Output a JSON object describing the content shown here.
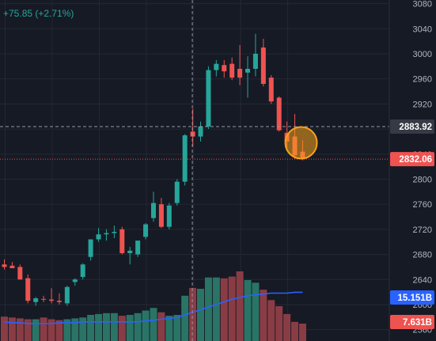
{
  "header": {
    "change_text": "+75.85 (+2.71%)"
  },
  "colors": {
    "background": "#161a25",
    "up": "#26a69a",
    "down": "#ef5350",
    "volume_up": "#2a7466",
    "volume_down": "#8a3c45",
    "grid": "#242834",
    "axis_text": "#b2b5be",
    "ma_line": "#2962ff",
    "highlight": "#f7a21b"
  },
  "chart_data": {
    "type": "candlestick",
    "y_axis_ticks": [
      3080,
      3040,
      3000,
      2960,
      2920,
      2880,
      2840,
      2800,
      2760,
      2720,
      2680,
      2640,
      2600,
      2560
    ],
    "ylim": [
      2552,
      3082
    ],
    "grid": true,
    "crosshair": {
      "price": 2883.92,
      "label": "2883.92"
    },
    "last_price": {
      "price": 2832.06,
      "label": "2832.06"
    },
    "volume_labels": [
      {
        "label": "15.151B",
        "value_b": 15.151,
        "color": "#2962ff"
      },
      {
        "label": "7.631B",
        "value_b": 7.631,
        "color": "#ef5350"
      }
    ],
    "candles": [
      {
        "o": 2664,
        "h": 2672,
        "l": 2656,
        "c": 2660
      },
      {
        "o": 2662,
        "h": 2668,
        "l": 2658,
        "c": 2658
      },
      {
        "o": 2660,
        "h": 2664,
        "l": 2640,
        "c": 2640
      },
      {
        "o": 2642,
        "h": 2648,
        "l": 2602,
        "c": 2606
      },
      {
        "o": 2604,
        "h": 2612,
        "l": 2598,
        "c": 2610
      },
      {
        "o": 2609,
        "h": 2614,
        "l": 2604,
        "c": 2608
      },
      {
        "o": 2608,
        "h": 2626,
        "l": 2602,
        "c": 2606
      },
      {
        "o": 2606,
        "h": 2618,
        "l": 2600,
        "c": 2604
      },
      {
        "o": 2602,
        "h": 2630,
        "l": 2598,
        "c": 2628
      },
      {
        "o": 2636,
        "h": 2642,
        "l": 2630,
        "c": 2640
      },
      {
        "o": 2644,
        "h": 2666,
        "l": 2640,
        "c": 2664
      },
      {
        "o": 2676,
        "h": 2704,
        "l": 2670,
        "c": 2704
      },
      {
        "o": 2704,
        "h": 2722,
        "l": 2700,
        "c": 2712
      },
      {
        "o": 2712,
        "h": 2720,
        "l": 2702,
        "c": 2714
      },
      {
        "o": 2714,
        "h": 2726,
        "l": 2706,
        "c": 2716
      },
      {
        "o": 2720,
        "h": 2724,
        "l": 2680,
        "c": 2682
      },
      {
        "o": 2682,
        "h": 2692,
        "l": 2664,
        "c": 2686
      },
      {
        "o": 2680,
        "h": 2702,
        "l": 2676,
        "c": 2702
      },
      {
        "o": 2708,
        "h": 2730,
        "l": 2704,
        "c": 2728
      },
      {
        "o": 2738,
        "h": 2780,
        "l": 2732,
        "c": 2762
      },
      {
        "o": 2760,
        "h": 2770,
        "l": 2722,
        "c": 2724
      },
      {
        "o": 2724,
        "h": 2762,
        "l": 2720,
        "c": 2758
      },
      {
        "o": 2762,
        "h": 2800,
        "l": 2758,
        "c": 2796
      },
      {
        "o": 2796,
        "h": 2872,
        "l": 2790,
        "c": 2870
      },
      {
        "o": 2876,
        "h": 2912,
        "l": 2852,
        "c": 2868
      },
      {
        "o": 2868,
        "h": 2892,
        "l": 2860,
        "c": 2884
      },
      {
        "o": 2884,
        "h": 2980,
        "l": 2880,
        "c": 2974
      },
      {
        "o": 2974,
        "h": 2990,
        "l": 2964,
        "c": 2984
      },
      {
        "o": 2982,
        "h": 2990,
        "l": 2962,
        "c": 2972
      },
      {
        "o": 2984,
        "h": 2994,
        "l": 2958,
        "c": 2962
      },
      {
        "o": 2976,
        "h": 3014,
        "l": 2950,
        "c": 2962
      },
      {
        "o": 2970,
        "h": 2996,
        "l": 2930,
        "c": 2976
      },
      {
        "o": 2976,
        "h": 3032,
        "l": 2964,
        "c": 3000
      },
      {
        "o": 3010,
        "h": 3024,
        "l": 2948,
        "c": 2952
      },
      {
        "o": 2962,
        "h": 2966,
        "l": 2920,
        "c": 2924
      },
      {
        "o": 2930,
        "h": 2932,
        "l": 2876,
        "c": 2878
      },
      {
        "o": 2874,
        "h": 2892,
        "l": 2846,
        "c": 2860
      },
      {
        "o": 2868,
        "h": 2904,
        "l": 2832,
        "c": 2838
      },
      {
        "o": 2844,
        "h": 2862,
        "l": 2830,
        "c": 2832
      }
    ],
    "volumes": [
      28,
      27,
      26,
      25,
      25,
      27,
      25,
      24,
      25,
      26,
      27,
      30,
      31,
      32,
      32,
      29,
      30,
      32,
      35,
      38,
      33,
      29,
      30,
      52,
      61,
      60,
      73,
      73,
      72,
      74,
      80,
      70,
      67,
      59,
      47,
      40,
      31,
      22,
      20
    ],
    "ma_values": [
      22,
      21,
      21,
      20,
      20,
      20,
      20,
      21,
      21,
      21,
      22,
      22,
      22,
      22,
      22,
      22,
      22,
      22,
      23,
      24,
      25,
      26,
      27,
      30,
      33,
      36,
      39,
      42,
      45,
      48,
      50,
      52,
      53,
      54,
      55,
      55,
      55,
      56,
      56
    ],
    "volume_max": 100,
    "crosshair_x_index": 24,
    "highlight_index": 37
  }
}
